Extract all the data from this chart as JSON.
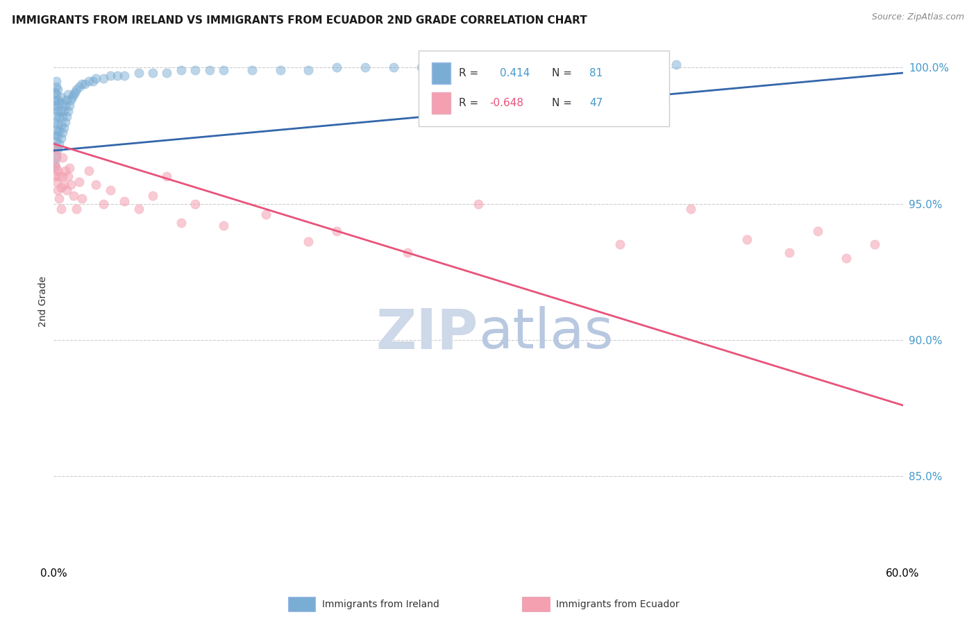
{
  "title": "IMMIGRANTS FROM IRELAND VS IMMIGRANTS FROM ECUADOR 2ND GRADE CORRELATION CHART",
  "source": "Source: ZipAtlas.com",
  "ylabel": "2nd Grade",
  "ytick_values": [
    1.0,
    0.95,
    0.9,
    0.85
  ],
  "xlim": [
    0.0,
    0.6
  ],
  "ylim": [
    0.818,
    1.01
  ],
  "ireland_R": 0.414,
  "ireland_N": 81,
  "ecuador_R": -0.648,
  "ecuador_N": 47,
  "ireland_color": "#7aadd4",
  "ecuador_color": "#f4a0b0",
  "ireland_line_color": "#3366aa",
  "ecuador_line_color": "#e8527a",
  "background_color": "#ffffff",
  "grid_color": "#cccccc",
  "watermark_zip_color": "#cdd8e8",
  "watermark_atlas_color": "#b8c8e0",
  "legend_label_ireland": "Immigrants from Ireland",
  "legend_label_ecuador": "Immigrants from Ecuador",
  "ireland_line_x0": 0.0,
  "ireland_line_y0": 0.9695,
  "ireland_line_x1": 0.6,
  "ireland_line_y1": 0.998,
  "ecuador_line_x0": 0.0,
  "ecuador_line_y0": 0.972,
  "ecuador_line_x1": 0.6,
  "ecuador_line_y1": 0.876,
  "ireland_x": [
    0.001,
    0.001,
    0.001,
    0.001,
    0.001,
    0.001,
    0.001,
    0.002,
    0.002,
    0.002,
    0.002,
    0.002,
    0.002,
    0.002,
    0.002,
    0.003,
    0.003,
    0.003,
    0.003,
    0.003,
    0.003,
    0.004,
    0.004,
    0.004,
    0.004,
    0.005,
    0.005,
    0.005,
    0.005,
    0.006,
    0.006,
    0.006,
    0.007,
    0.007,
    0.008,
    0.008,
    0.009,
    0.009,
    0.01,
    0.01,
    0.011,
    0.012,
    0.013,
    0.014,
    0.015,
    0.016,
    0.018,
    0.02,
    0.022,
    0.025,
    0.028,
    0.03,
    0.035,
    0.04,
    0.045,
    0.05,
    0.06,
    0.07,
    0.08,
    0.09,
    0.1,
    0.11,
    0.12,
    0.14,
    0.16,
    0.18,
    0.2,
    0.22,
    0.24,
    0.26,
    0.28,
    0.3,
    0.32,
    0.34,
    0.36,
    0.38,
    0.4,
    0.42,
    0.44,
    0.35,
    0.38
  ],
  "ireland_y": [
    0.964,
    0.971,
    0.975,
    0.98,
    0.985,
    0.988,
    0.991,
    0.967,
    0.973,
    0.977,
    0.982,
    0.986,
    0.99,
    0.993,
    0.995,
    0.97,
    0.975,
    0.979,
    0.984,
    0.988,
    0.992,
    0.972,
    0.977,
    0.982,
    0.987,
    0.974,
    0.979,
    0.984,
    0.989,
    0.976,
    0.982,
    0.987,
    0.978,
    0.984,
    0.98,
    0.986,
    0.982,
    0.988,
    0.984,
    0.99,
    0.986,
    0.988,
    0.989,
    0.99,
    0.991,
    0.992,
    0.993,
    0.994,
    0.994,
    0.995,
    0.995,
    0.996,
    0.996,
    0.997,
    0.997,
    0.997,
    0.998,
    0.998,
    0.998,
    0.999,
    0.999,
    0.999,
    0.999,
    0.999,
    0.999,
    0.999,
    1.0,
    1.0,
    1.0,
    1.0,
    1.0,
    1.0,
    1.0,
    1.0,
    1.0,
    1.0,
    1.0,
    1.001,
    1.001,
    0.999,
    0.999
  ],
  "ecuador_x": [
    0.001,
    0.001,
    0.001,
    0.002,
    0.002,
    0.002,
    0.003,
    0.003,
    0.004,
    0.004,
    0.005,
    0.005,
    0.006,
    0.006,
    0.007,
    0.008,
    0.009,
    0.01,
    0.011,
    0.012,
    0.014,
    0.016,
    0.018,
    0.02,
    0.025,
    0.03,
    0.035,
    0.04,
    0.05,
    0.06,
    0.07,
    0.08,
    0.09,
    0.1,
    0.12,
    0.15,
    0.18,
    0.2,
    0.25,
    0.3,
    0.4,
    0.45,
    0.49,
    0.52,
    0.54,
    0.56,
    0.58
  ],
  "ecuador_y": [
    0.96,
    0.965,
    0.97,
    0.958,
    0.963,
    0.968,
    0.955,
    0.962,
    0.952,
    0.96,
    0.948,
    0.956,
    0.96,
    0.967,
    0.957,
    0.962,
    0.955,
    0.96,
    0.963,
    0.957,
    0.953,
    0.948,
    0.958,
    0.952,
    0.962,
    0.957,
    0.95,
    0.955,
    0.951,
    0.948,
    0.953,
    0.96,
    0.943,
    0.95,
    0.942,
    0.946,
    0.936,
    0.94,
    0.932,
    0.95,
    0.935,
    0.948,
    0.937,
    0.932,
    0.94,
    0.93,
    0.935
  ]
}
